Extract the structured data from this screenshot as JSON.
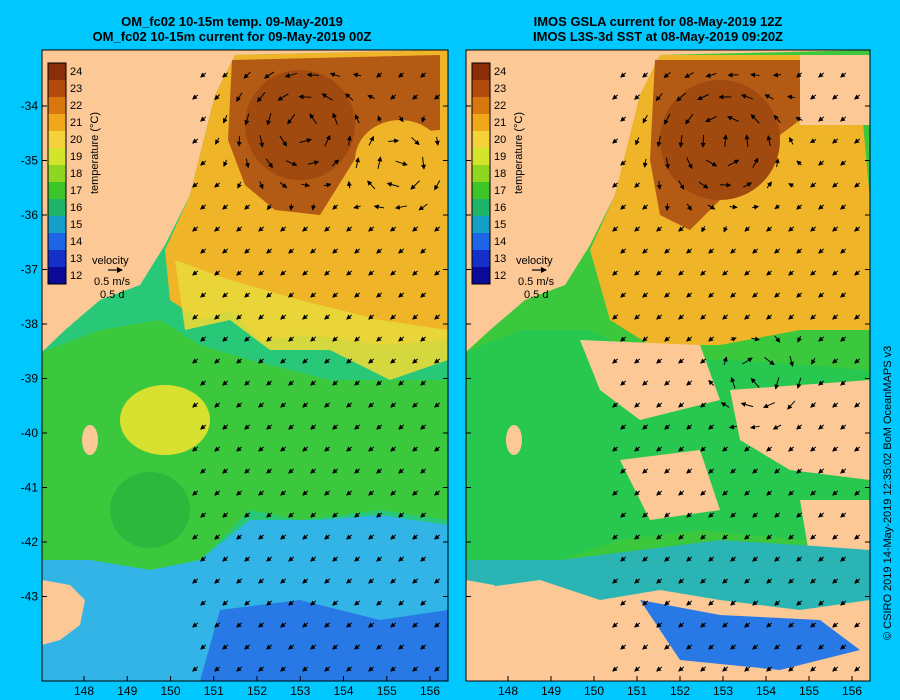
{
  "panels": [
    {
      "id": "left",
      "title_line1": "OM_fc02 10-15m temp. 09-May-2019",
      "title_line2": "OM_fc02 10-15m current for 09-May-2019 00Z"
    },
    {
      "id": "right",
      "title_line1": "IMOS GSLA current for 08-May-2019 12Z",
      "title_line2": "IMOS L3S-3d SST at 08-May-2019 09:20Z"
    }
  ],
  "colorbar": {
    "label": "temperature (°C)",
    "ticks": [
      24,
      23,
      22,
      21,
      20,
      19,
      18,
      17,
      16,
      15,
      14,
      13,
      12
    ],
    "colors": [
      "#8b2e07",
      "#b34a0d",
      "#d9770f",
      "#f0a81a",
      "#f5d23a",
      "#d4e42a",
      "#8fd620",
      "#3dc52a",
      "#1eb56a",
      "#14a0c8",
      "#1e64e6",
      "#1430c8",
      "#0a0a96"
    ]
  },
  "velocity_legend": {
    "label": "velocity",
    "speed": "0.5 m/s",
    "duration": "0.5 d"
  },
  "axes": {
    "x_ticks": [
      "148",
      "149",
      "150",
      "151",
      "152",
      "153",
      "154",
      "155",
      "156"
    ],
    "y_ticks": [
      "-34",
      "-35",
      "-36",
      "-37",
      "-38",
      "-39",
      "-40",
      "-41",
      "-42",
      "-43"
    ]
  },
  "credit": "© CSIRO 2019   14-May-2019 12:35:02 BoM OceanMAPS v3",
  "colors": {
    "background": "#00c8ff",
    "land": "#fcc896",
    "warm_eddy": "#b35a14",
    "warm_water": "#f0b428",
    "green_water": "#3cc83c",
    "cool_water": "#32b4e6",
    "deep_cool": "#2878e6"
  }
}
